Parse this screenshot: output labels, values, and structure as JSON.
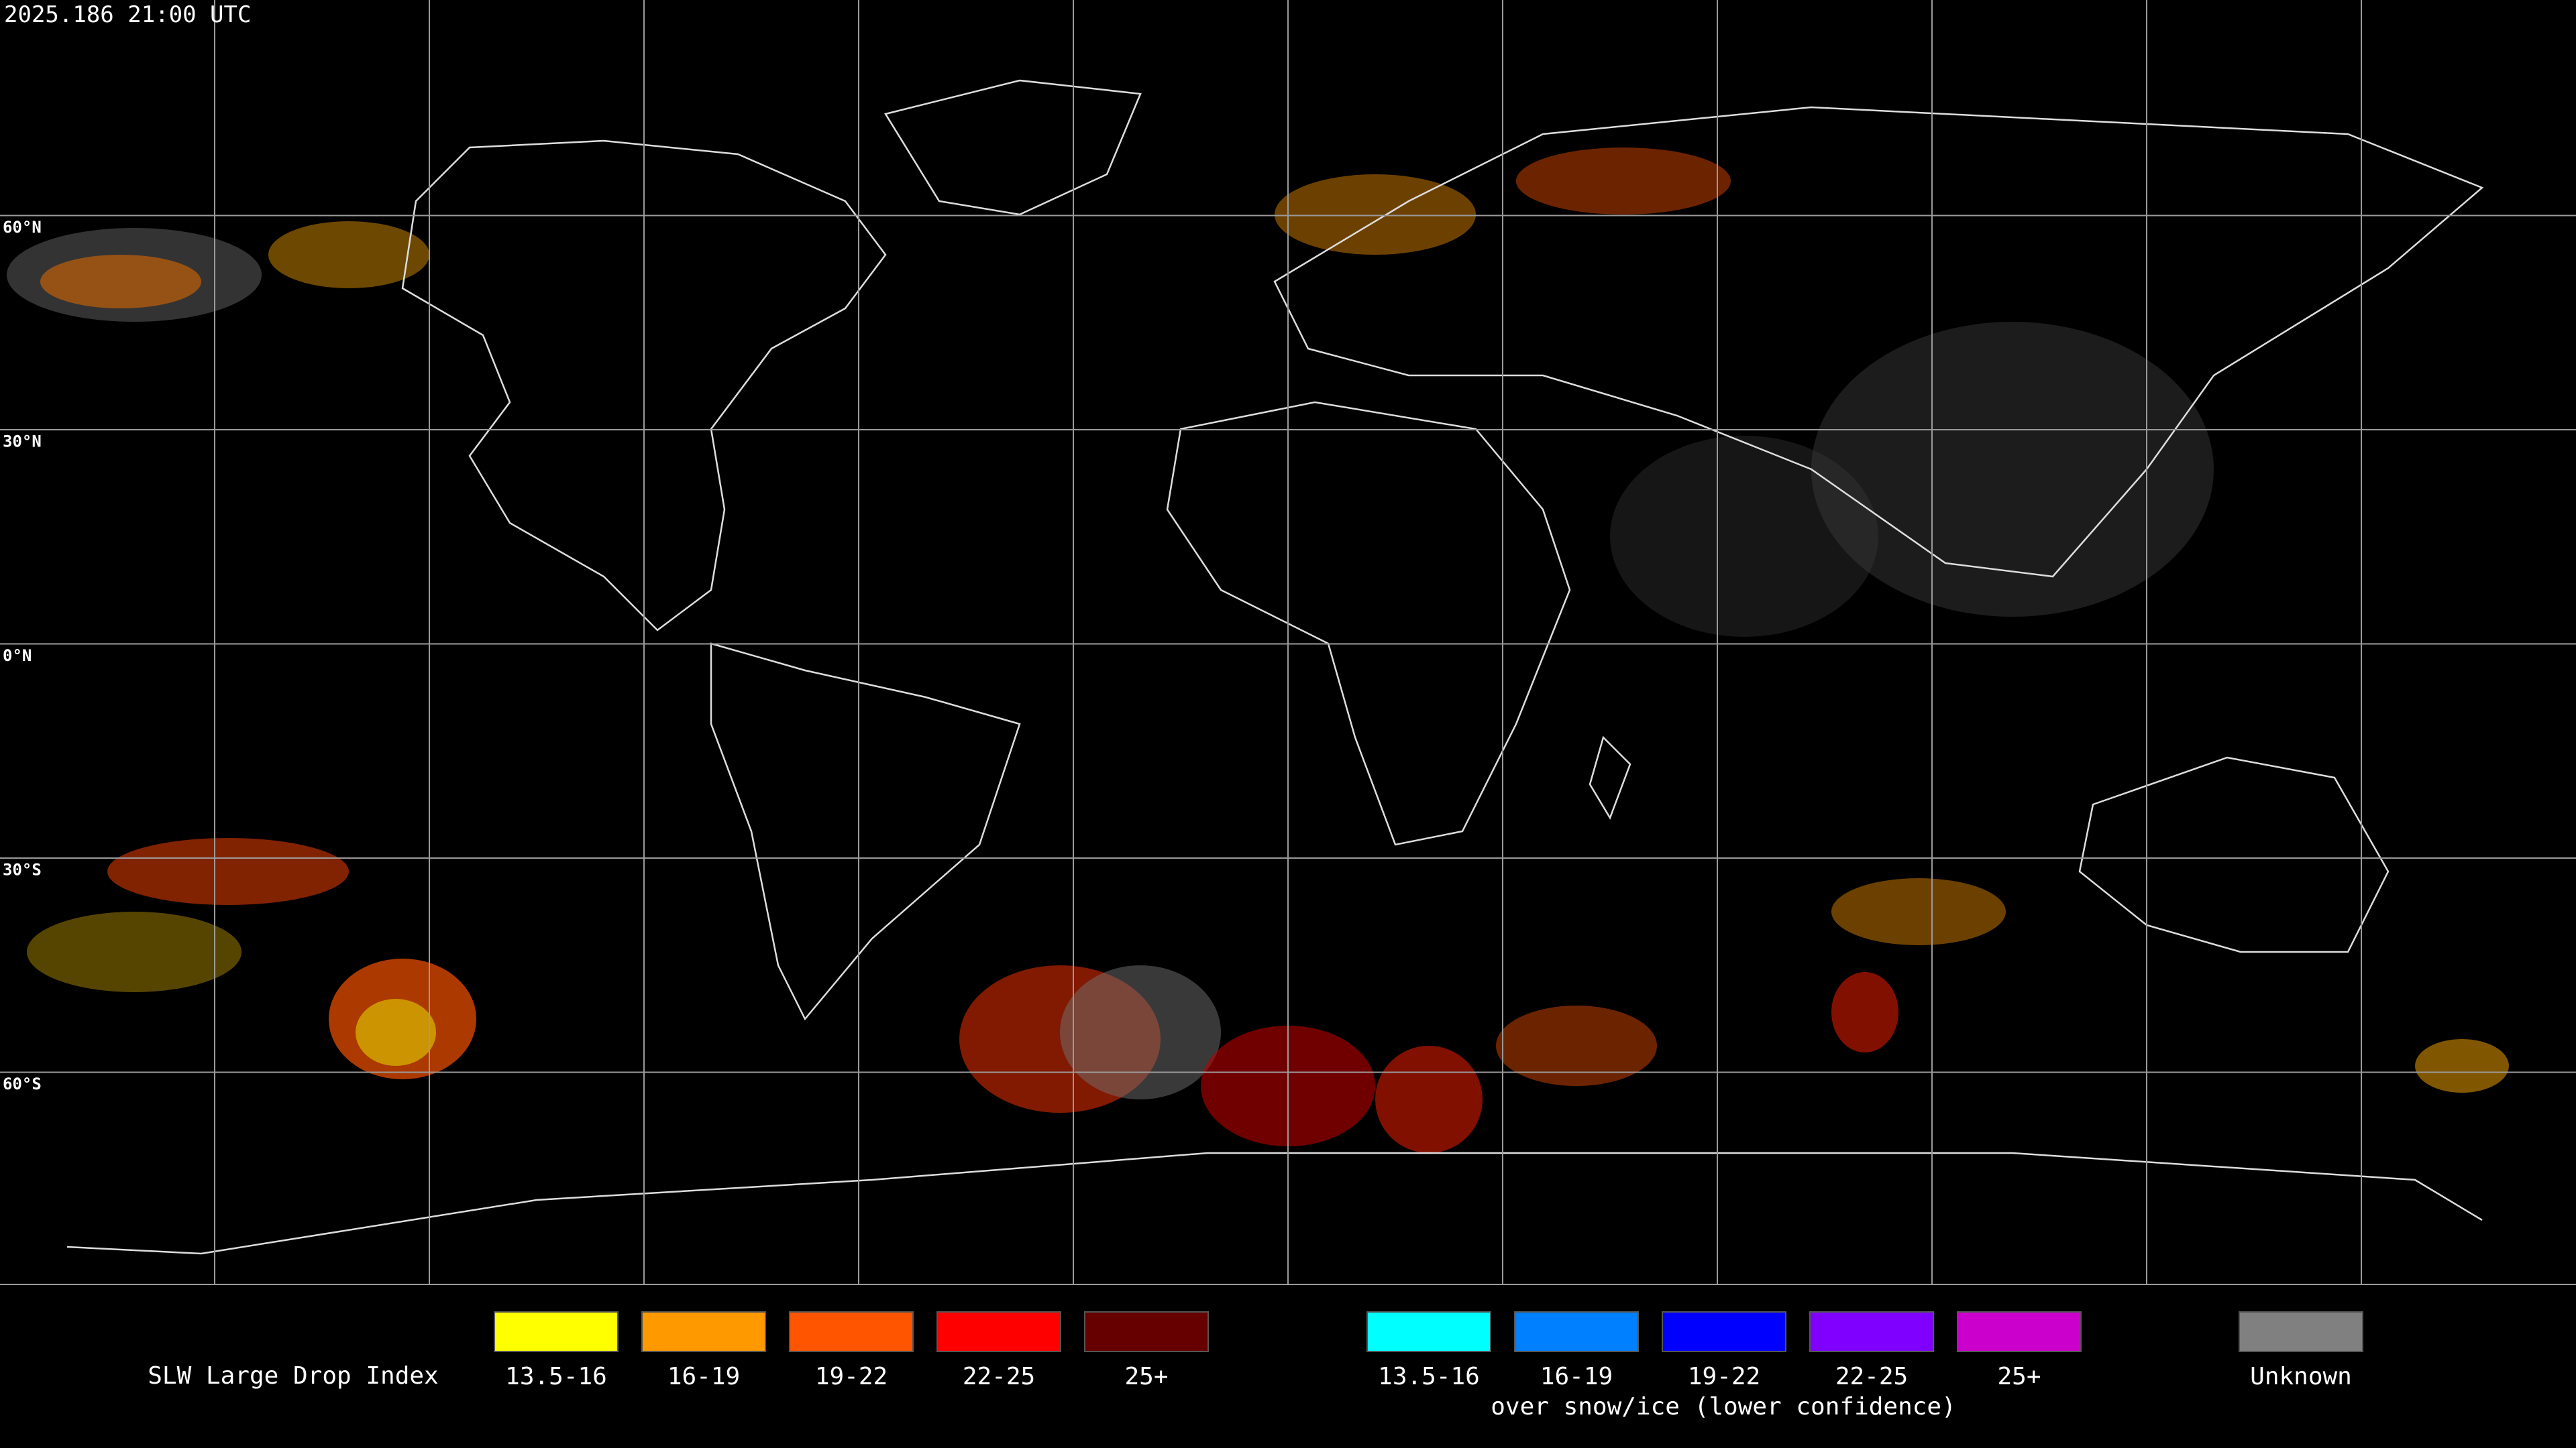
{
  "header": {
    "timestamp": "2025.186 21:00 UTC"
  },
  "map": {
    "latitude_labels": [
      "60°N",
      "30°N",
      "0°N",
      "30°S",
      "60°S"
    ]
  },
  "legend": {
    "title": "SLW Large Drop Index",
    "items": [
      {
        "label": "13.5-16",
        "color": "#ffff00"
      },
      {
        "label": "16-19",
        "color": "#ff9900"
      },
      {
        "label": "19-22",
        "color": "#ff5500"
      },
      {
        "label": "22-25",
        "color": "#ff0000"
      },
      {
        "label": "25+",
        "color": "#660000"
      }
    ],
    "snow_ice_items": [
      {
        "label": "13.5-16",
        "color": "#00ffff"
      },
      {
        "label": "16-19",
        "color": "#0080ff"
      },
      {
        "label": "19-22",
        "color": "#0000ff"
      },
      {
        "label": "22-25",
        "color": "#7f00ff"
      },
      {
        "label": "25+",
        "color": "#cc00cc"
      }
    ],
    "snow_ice_note": "over snow/ice (lower confidence)",
    "unknown": {
      "label": "Unknown",
      "color": "#808080"
    }
  }
}
